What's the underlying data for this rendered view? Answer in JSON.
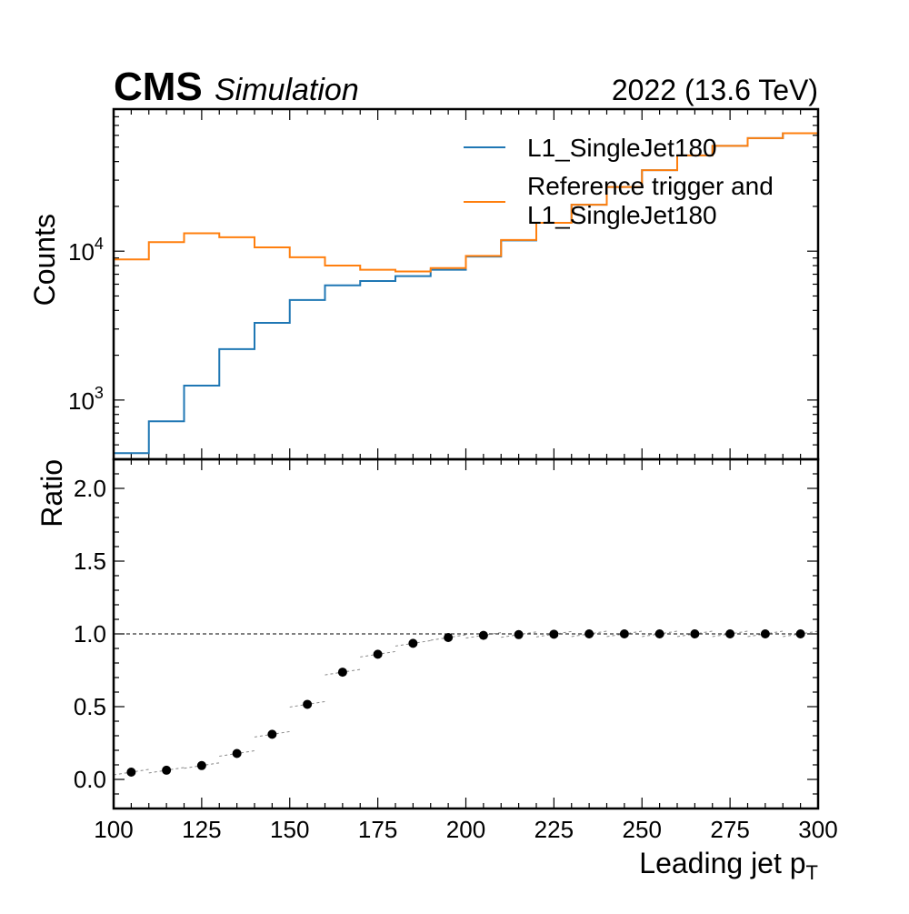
{
  "header": {
    "experiment": "CMS",
    "label": "Simulation",
    "lumi": "2022 (13.6 TeV)"
  },
  "chart_data": [
    {
      "panel": "top",
      "type": "histogram-step",
      "ylabel": "Counts",
      "yscale": "log",
      "ylim": [
        400,
        90000
      ],
      "xlim": [
        100,
        300
      ],
      "y_ticks": [
        {
          "base": "10",
          "exp": "3",
          "value": 1000
        },
        {
          "base": "10",
          "exp": "4",
          "value": 10000
        }
      ],
      "bin_edges": [
        100,
        110,
        120,
        130,
        140,
        150,
        160,
        170,
        180,
        190,
        200,
        210,
        220,
        230,
        240,
        250,
        260,
        270,
        280,
        290,
        300
      ],
      "series": [
        {
          "name": "L1_SingleJet180",
          "color": "#1f77b4",
          "values": [
            440,
            720,
            1250,
            2200,
            3300,
            4700,
            5900,
            6300,
            6800,
            7500,
            9200,
            11800,
            15500,
            20500,
            27000,
            35000,
            44000,
            51000,
            57500,
            62000
          ]
        },
        {
          "name": "Reference trigger and L1_SingleJet180",
          "name_lines": [
            "Reference trigger and",
            "L1_SingleJet180"
          ],
          "color": "#ff7f0e",
          "values": [
            8800,
            11500,
            13200,
            12400,
            10600,
            9100,
            8000,
            7500,
            7300,
            7700,
            9300,
            11900,
            15500,
            20500,
            27000,
            35000,
            44000,
            51000,
            57500,
            62000
          ]
        }
      ],
      "legend_loc": "upper right"
    },
    {
      "panel": "bottom",
      "type": "scatter",
      "xlabel": "Leading jet p",
      "xlabel_sub": "T",
      "ylabel": "Ratio",
      "ylim": [
        -0.2,
        2.2
      ],
      "xlim": [
        100,
        300
      ],
      "x_ticks": [
        "100",
        "125",
        "150",
        "175",
        "200",
        "225",
        "250",
        "275",
        "300"
      ],
      "y_ticks": [
        "0.0",
        "0.5",
        "1.0",
        "1.5",
        "2.0"
      ],
      "reference_line": 1.0,
      "x": [
        105,
        115,
        125,
        135,
        145,
        155,
        165,
        175,
        185,
        195,
        205,
        215,
        225,
        235,
        245,
        255,
        265,
        275,
        285,
        295
      ],
      "values": [
        0.05,
        0.063,
        0.095,
        0.178,
        0.31,
        0.516,
        0.737,
        0.86,
        0.935,
        0.975,
        0.99,
        0.995,
        0.998,
        1.0,
        1.0,
        1.0,
        1.0,
        1.0,
        1.0,
        1.0
      ]
    }
  ]
}
